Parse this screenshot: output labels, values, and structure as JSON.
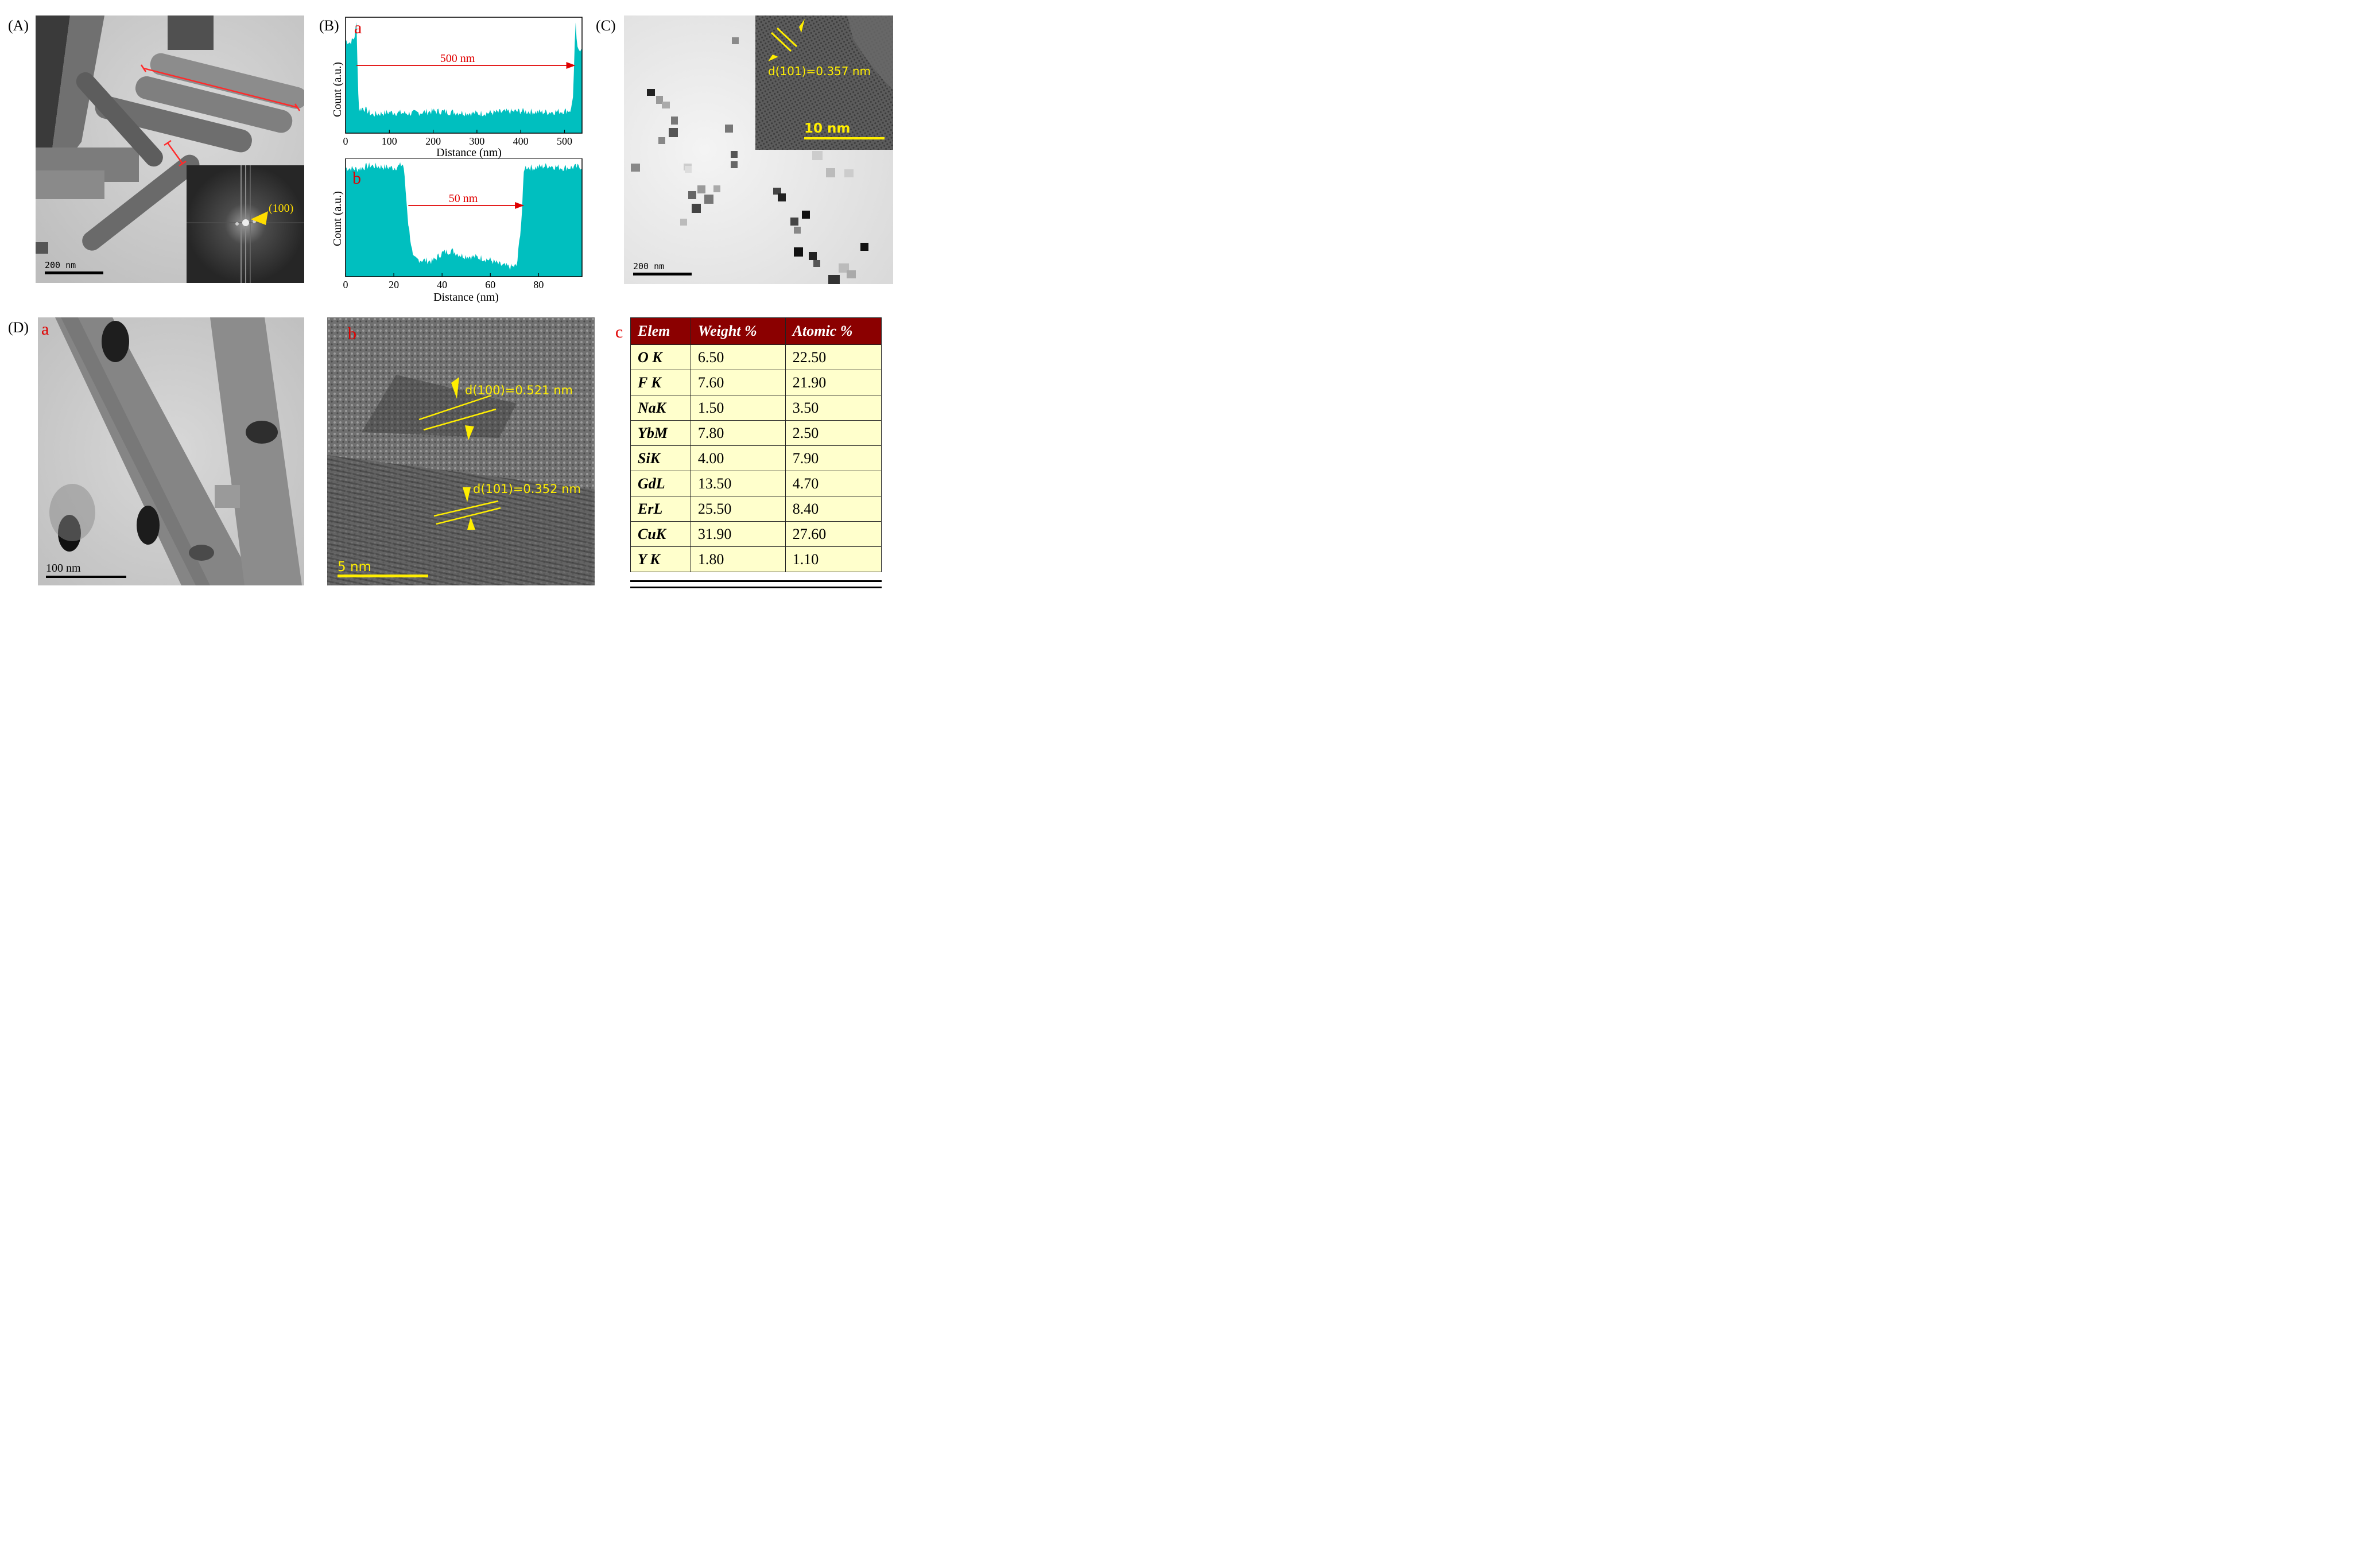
{
  "panels": {
    "A": {
      "label": "(A)",
      "scale_bar": "200 nm",
      "fft_annotation": "(100)"
    },
    "B": {
      "label": "(B)",
      "a": {
        "sub_label": "a",
        "ylabel": "Count (a.u.)",
        "xlabel": "Distance (nm)",
        "arrow_label": "500 nm",
        "xticks": [
          "0",
          "100",
          "200",
          "300",
          "400",
          "500"
        ]
      },
      "b": {
        "sub_label": "b",
        "ylabel": "Count (a.u.)",
        "xlabel": "Distance (nm)",
        "arrow_label": "50 nm",
        "xticks": [
          "0",
          "20",
          "40",
          "60",
          "80"
        ]
      }
    },
    "C": {
      "label": "(C)",
      "scale_bar": "200 nm",
      "inset_scale_bar": "10  nm",
      "lattice_label": "d(101)=0.357 nm"
    },
    "D": {
      "label": "(D)",
      "a": {
        "sub_label": "a",
        "scale_bar": "100 nm"
      },
      "b": {
        "sub_label": "b",
        "scale_bar": "5  nm",
        "lattice_label_1": "d(100)=0.521 nm",
        "lattice_label_2": "d(101)=0.352 nm"
      },
      "c": {
        "sub_label": "c"
      }
    }
  },
  "edx_table": {
    "headers": [
      "Elem",
      "Weight %",
      "Atomic %"
    ],
    "rows": [
      [
        "O K",
        "6.50",
        "22.50"
      ],
      [
        "F K",
        "7.60",
        "21.90"
      ],
      [
        "NaK",
        "1.50",
        "3.50"
      ],
      [
        "YbM",
        "7.80",
        "2.50"
      ],
      [
        "SiK",
        "4.00",
        "7.90"
      ],
      [
        "GdL",
        "13.50",
        "4.70"
      ],
      [
        "ErL",
        "25.50",
        "8.40"
      ],
      [
        "CuK",
        "31.90",
        "27.60"
      ],
      [
        "Y K",
        "1.80",
        "1.10"
      ]
    ]
  },
  "chart_data": [
    {
      "type": "area",
      "xlabel": "Distance (nm)",
      "ylabel": "Count (a.u.)",
      "xlim": [
        0,
        540
      ],
      "x": [
        0,
        10,
        20,
        25,
        30,
        40,
        60,
        100,
        150,
        200,
        250,
        300,
        350,
        400,
        450,
        500,
        515,
        520,
        525,
        530,
        540
      ],
      "y": [
        0.8,
        0.78,
        0.82,
        0.95,
        0.2,
        0.22,
        0.16,
        0.18,
        0.17,
        0.19,
        0.18,
        0.17,
        0.18,
        0.19,
        0.18,
        0.19,
        0.2,
        0.35,
        0.95,
        0.7,
        0.75
      ],
      "annotation": "500 nm"
    },
    {
      "type": "area",
      "xlabel": "Distance (nm)",
      "ylabel": "Count (a.u.)",
      "xlim": [
        0,
        98
      ],
      "x": [
        0,
        5,
        10,
        15,
        20,
        24,
        26,
        28,
        32,
        36,
        40,
        44,
        48,
        52,
        56,
        60,
        64,
        68,
        71,
        73,
        74,
        78,
        84,
        90,
        98
      ],
      "y": [
        0.92,
        0.91,
        0.94,
        0.93,
        0.92,
        0.95,
        0.45,
        0.15,
        0.14,
        0.13,
        0.2,
        0.22,
        0.18,
        0.17,
        0.16,
        0.14,
        0.1,
        0.08,
        0.09,
        0.5,
        0.93,
        0.92,
        0.94,
        0.92,
        0.93
      ],
      "annotation": "50 nm"
    }
  ]
}
